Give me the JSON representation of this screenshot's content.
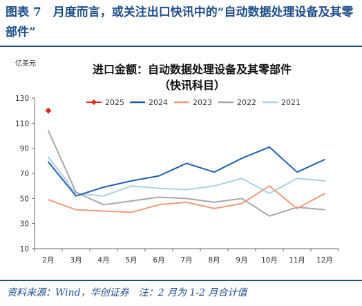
{
  "figure_title": "图表 7　月度而言，或关注出口快讯中的“自动数据处理设备及其零部件”",
  "source_note": "资料来源：Wind，华创证券　注：2 月为 1-2 月合计值",
  "colors": {
    "brand": "#1f4e8c",
    "s2025": "#e8231f",
    "s2024": "#1f5fae",
    "s2023": "#ee9b7c",
    "s2022": "#a8a8a8",
    "s2021": "#a9cfe8"
  },
  "chart_data": {
    "type": "line",
    "title_line1": "进口金额：自动数据处理设备及其零部件",
    "title_line2": "（快讯科目）",
    "unit_label": "亿美元",
    "categories": [
      "2月",
      "3月",
      "4月",
      "5月",
      "6月",
      "7月",
      "8月",
      "9月",
      "10月",
      "11月",
      "12月"
    ],
    "ylim": [
      10,
      130
    ],
    "yticks": [
      10,
      30,
      50,
      70,
      90,
      110,
      130
    ],
    "grid": false,
    "legend_position": "top",
    "series": [
      {
        "name": "2025",
        "color_key": "s2025",
        "marker": "diamond",
        "values": [
          120,
          null,
          null,
          null,
          null,
          null,
          null,
          null,
          null,
          null,
          null
        ]
      },
      {
        "name": "2024",
        "color_key": "s2024",
        "values": [
          79,
          52,
          59,
          64,
          68,
          78,
          71,
          82,
          91,
          71,
          81
        ]
      },
      {
        "name": "2023",
        "color_key": "s2023",
        "values": [
          49,
          41,
          40,
          39,
          45,
          47,
          42,
          46,
          60,
          42,
          54
        ]
      },
      {
        "name": "2022",
        "color_key": "s2022",
        "values": [
          104,
          55,
          45,
          48,
          51,
          50,
          47,
          50,
          36,
          43,
          41
        ]
      },
      {
        "name": "2021",
        "color_key": "s2021",
        "values": [
          83,
          54,
          52,
          60,
          58,
          57,
          60,
          66,
          54,
          66,
          64
        ]
      }
    ]
  }
}
